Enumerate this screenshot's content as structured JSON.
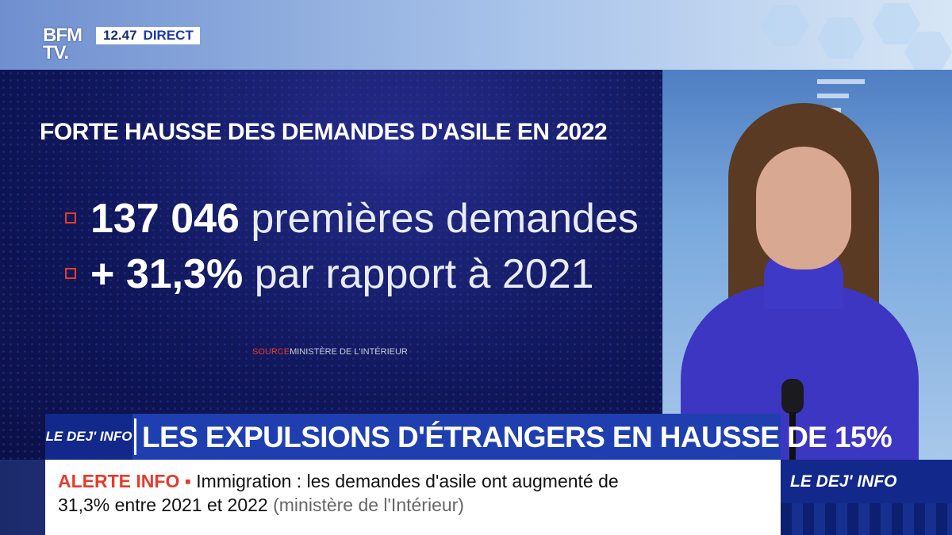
{
  "channel": {
    "logo": "BFM TV.",
    "time": "12.47",
    "live_label": "DIRECT"
  },
  "screen": {
    "title": "FORTE HAUSSE DES DEMANDES D'ASILE EN 2022",
    "stats": [
      {
        "bold": "137 046",
        "rest": " premières demandes"
      },
      {
        "bold": "+ 31,3%",
        "rest": " par rapport à 2021"
      }
    ],
    "source_key": "SOURCE",
    "source_value": "MINISTÈRE DE L'INTÉRIEUR"
  },
  "headline": {
    "show_logo": "LE DEJ' INFO",
    "text": "LES EXPULSIONS D'ÉTRANGERS EN HAUSSE DE 15%"
  },
  "alert": {
    "label": "ALERTE INFO ▪",
    "line1": " Immigration : les demandes d'asile ont augmenté de",
    "line2": "31,3% entre 2021 et 2022",
    "line2_note": "  (ministère de l'Intérieur)"
  },
  "corner": {
    "label": "LE DEJ' INFO"
  },
  "colors": {
    "accent_red": "#e53b2c",
    "headline_blue": "#1f3fb0",
    "screen_navy": "#10175a"
  }
}
